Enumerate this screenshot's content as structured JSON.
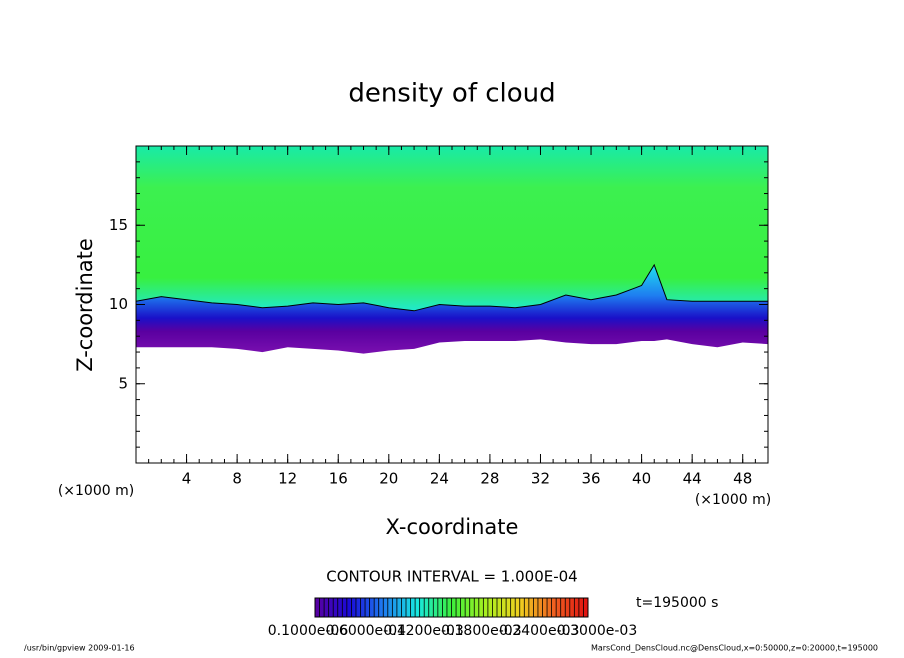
{
  "chart_data": {
    "type": "contour",
    "title": "density of cloud",
    "x_label": "X-coordinate",
    "y_label": "Z-coordinate",
    "x_unit": "(×1000 m)",
    "y_unit": "(×1000 m)",
    "contour_interval": "CONTOUR INTERVAL = 1.000E-04",
    "time_label": "t=195000 s",
    "xlim": [
      0,
      50
    ],
    "ylim": [
      0,
      20
    ],
    "xticks": [
      4,
      8,
      12,
      16,
      20,
      24,
      28,
      32,
      36,
      40,
      44,
      48
    ],
    "yticks": [
      5,
      10,
      15
    ],
    "x": [
      0,
      2,
      4,
      6,
      8,
      10,
      12,
      14,
      16,
      18,
      20,
      22,
      24,
      26,
      28,
      30,
      32,
      34,
      36,
      38,
      40,
      41,
      42,
      44,
      46,
      48,
      50
    ],
    "cloud_base_z": [
      7.3,
      7.3,
      7.3,
      7.3,
      7.2,
      7.0,
      7.3,
      7.2,
      7.1,
      6.9,
      7.1,
      7.2,
      7.6,
      7.7,
      7.7,
      7.7,
      7.8,
      7.6,
      7.5,
      7.5,
      7.7,
      7.7,
      7.8,
      7.5,
      7.3,
      7.6,
      7.5
    ],
    "contour_z": [
      10.2,
      10.5,
      10.3,
      10.1,
      10.0,
      9.8,
      9.9,
      10.1,
      10.0,
      10.1,
      9.8,
      9.6,
      10.0,
      9.9,
      9.9,
      9.8,
      10.0,
      10.6,
      10.3,
      10.6,
      11.2,
      12.5,
      10.3,
      10.2,
      10.2,
      10.2,
      10.2
    ],
    "colors": [
      "#5a00a0",
      "#1a0ad8",
      "#1e7cf0",
      "#18e8e0",
      "#3cf03c",
      "#a8f020",
      "#f0d020",
      "#f06020",
      "#e01010"
    ],
    "colorbar_labels": [
      "0.1000e-06",
      "0.6000e-04",
      "0.1200e-03",
      "0.1800e-03",
      "0.2400e-03",
      "0.3000e-03"
    ],
    "footer_left": "/usr/bin/gpview   2009-01-16",
    "footer_right": "MarsCond_DensCloud.nc@DensCloud,x=0:50000,z=0:20000,t=195000"
  }
}
